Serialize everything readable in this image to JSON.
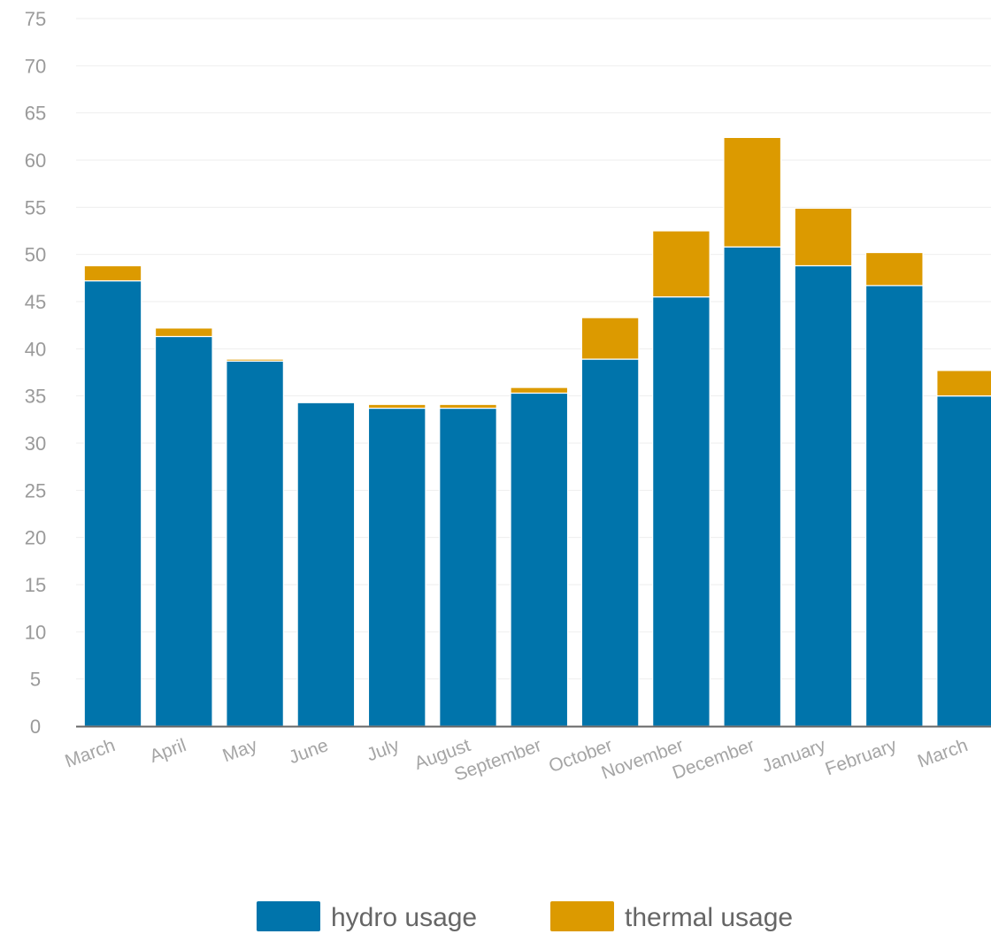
{
  "colors": {
    "hydro": "#0074ab",
    "thermal": "#dc9a00",
    "grid": "#eeeeee",
    "axis": "#666666"
  },
  "chart_data": {
    "type": "bar",
    "stacked": true,
    "categories": [
      "March",
      "April",
      "May",
      "June",
      "July",
      "August",
      "September",
      "October",
      "November",
      "December",
      "January",
      "February",
      "March"
    ],
    "series": [
      {
        "name": "hydro usage",
        "color": "#0074ab",
        "values": [
          47.2,
          41.3,
          38.7,
          34.3,
          33.7,
          33.7,
          35.3,
          38.9,
          45.5,
          50.8,
          48.8,
          46.7,
          35.0
        ]
      },
      {
        "name": "thermal usage",
        "color": "#dc9a00",
        "values": [
          1.6,
          0.9,
          0.2,
          0.1,
          0.4,
          0.4,
          0.6,
          4.4,
          7.0,
          11.6,
          6.1,
          3.5,
          2.7
        ]
      }
    ],
    "title": "",
    "xlabel": "",
    "ylabel": "",
    "ylim": [
      0,
      75
    ],
    "yticks": [
      "0",
      "5",
      "10",
      "15",
      "20",
      "25",
      "30",
      "35",
      "40",
      "45",
      "50",
      "55",
      "60",
      "65",
      "70",
      "75"
    ],
    "grid": true,
    "legend": "bottom-center"
  }
}
